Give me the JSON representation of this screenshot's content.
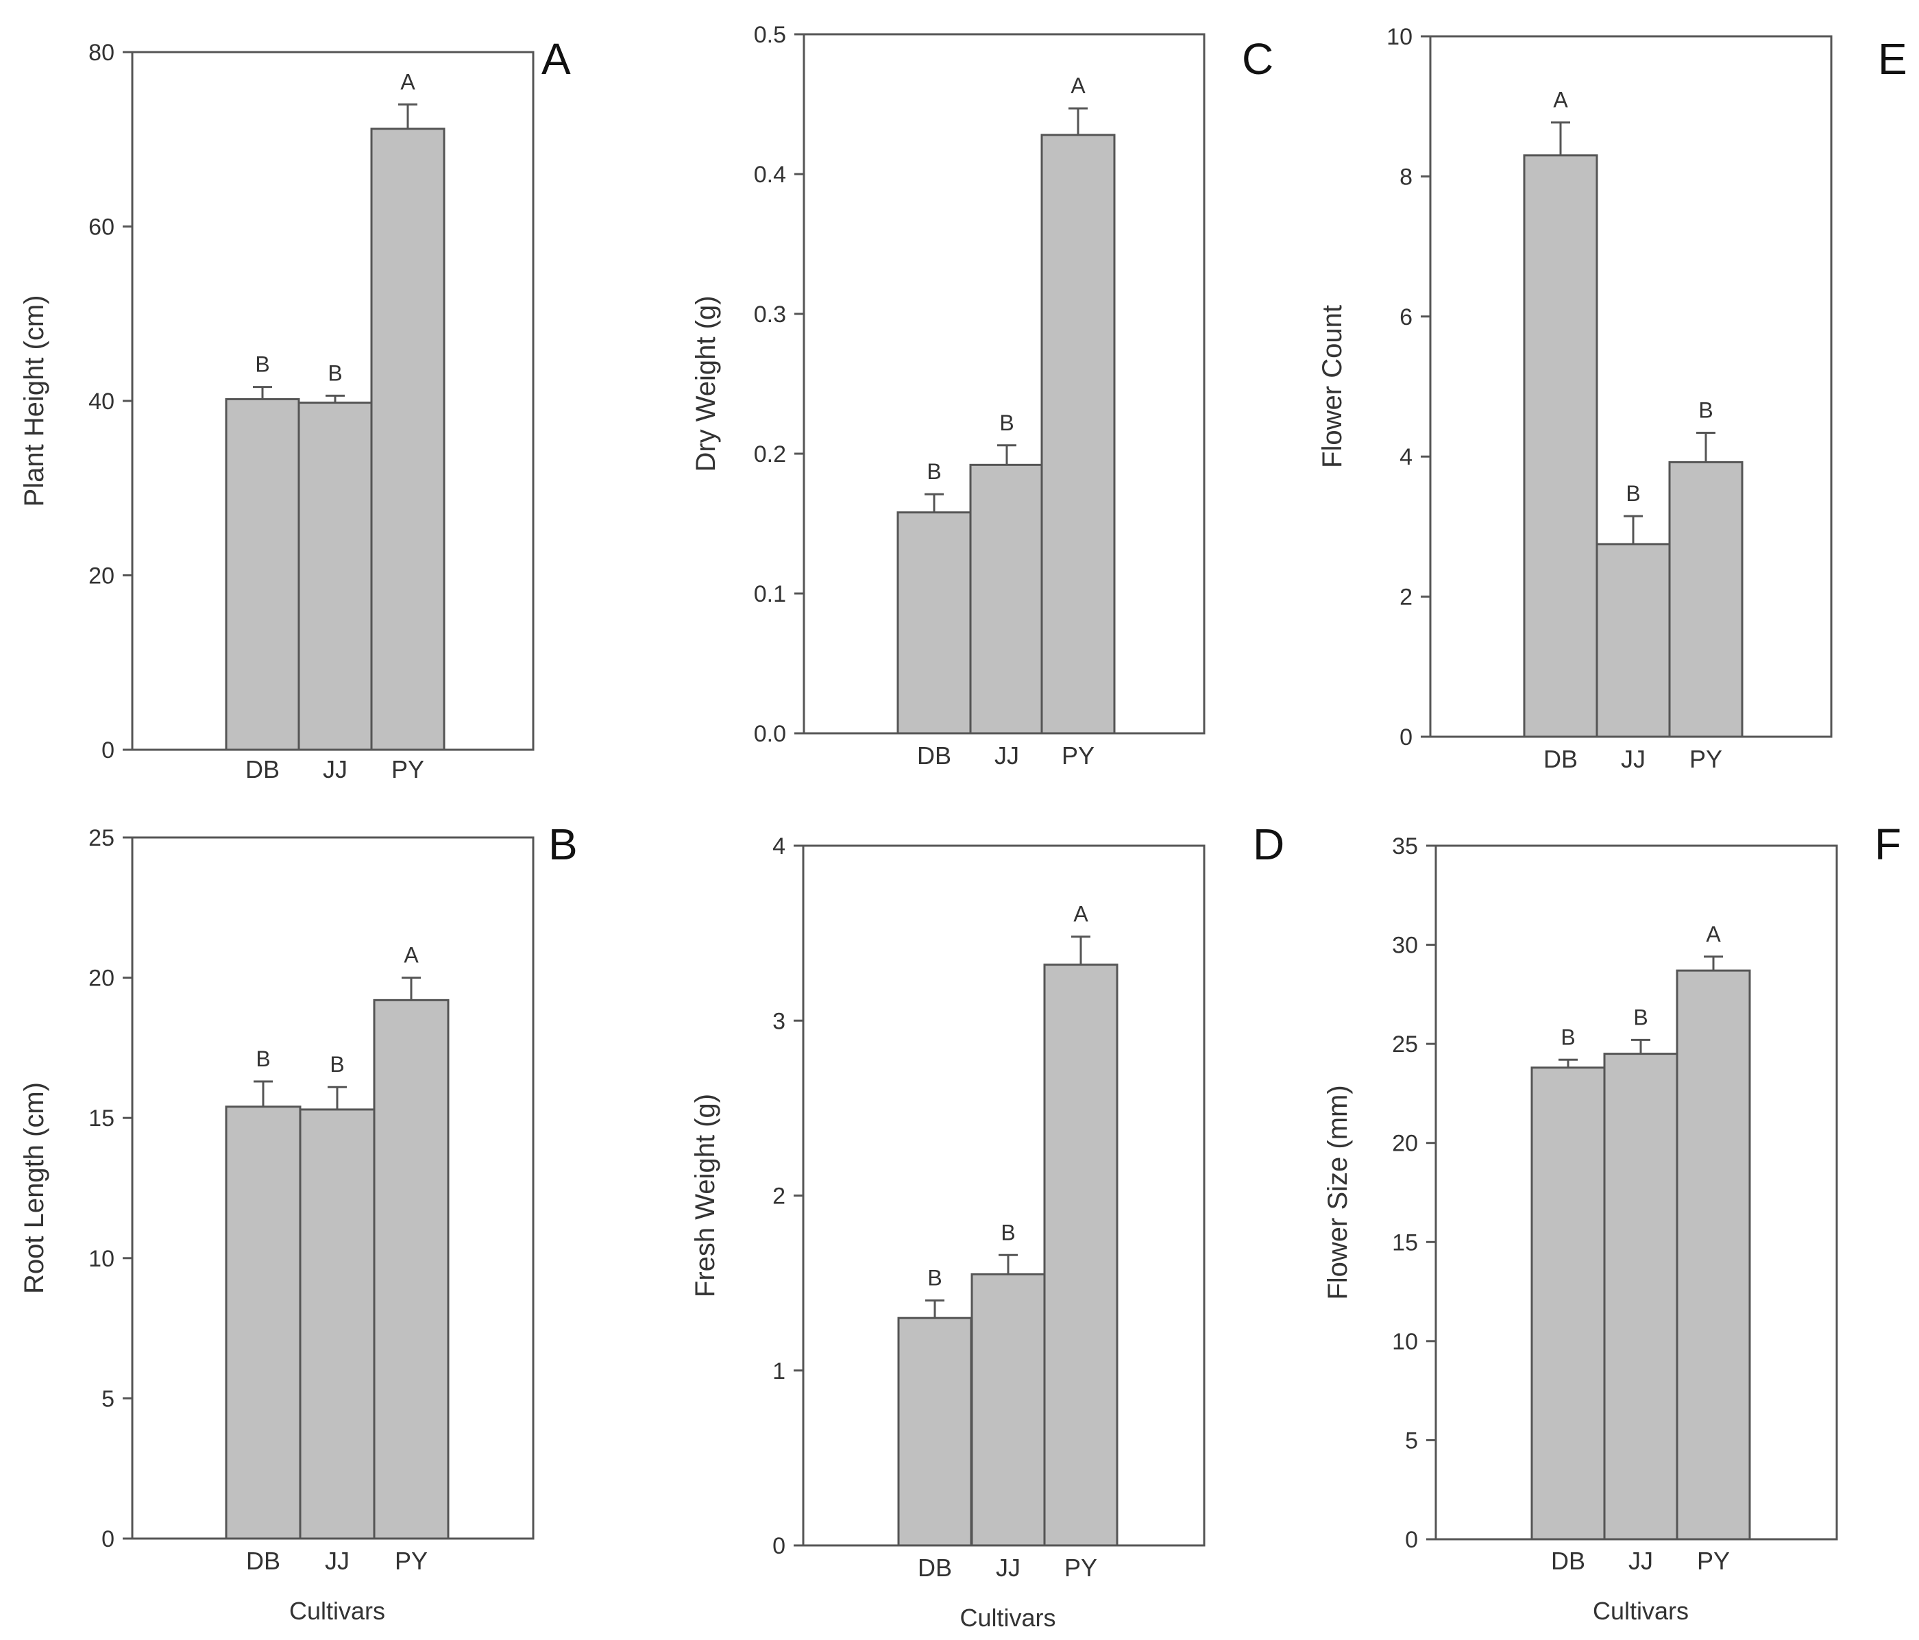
{
  "figure": {
    "bar_color": "#c0c0c0",
    "axis_color": "#555555",
    "text_color": "#333333"
  },
  "chart_data": [
    {
      "panel": "A",
      "type": "bar",
      "categories": [
        "DB",
        "JJ",
        "PY"
      ],
      "values": [
        40.2,
        39.8,
        71.2
      ],
      "errors": [
        1.4,
        0.8,
        2.8
      ],
      "significance": [
        "B",
        "B",
        "A"
      ],
      "ylabel": "Plant Height (cm)",
      "xlabel": "",
      "ylim": [
        0,
        80
      ],
      "yticks": [
        0,
        20,
        40,
        60,
        80
      ],
      "ytick_labels": [
        "0",
        "20",
        "40",
        "60",
        "80"
      ]
    },
    {
      "panel": "C",
      "type": "bar",
      "categories": [
        "DB",
        "JJ",
        "PY"
      ],
      "values": [
        0.158,
        0.192,
        0.428
      ],
      "errors": [
        0.013,
        0.014,
        0.019
      ],
      "significance": [
        "B",
        "B",
        "A"
      ],
      "ylabel": "Dry Weight (g)",
      "xlabel": "",
      "ylim": [
        0,
        0.5
      ],
      "yticks": [
        0,
        0.1,
        0.2,
        0.3,
        0.4,
        0.5
      ],
      "ytick_labels": [
        "0.0",
        "0.1",
        "0.2",
        "0.3",
        "0.4",
        "0.5"
      ]
    },
    {
      "panel": "E",
      "type": "bar",
      "categories": [
        "DB",
        "JJ",
        "PY"
      ],
      "values": [
        8.3,
        2.75,
        3.92
      ],
      "errors": [
        0.47,
        0.4,
        0.42
      ],
      "significance": [
        "A",
        "B",
        "B"
      ],
      "ylabel": "Flower Count",
      "xlabel": "",
      "ylim": [
        0,
        10
      ],
      "yticks": [
        0,
        2,
        4,
        6,
        8,
        10
      ],
      "ytick_labels": [
        "0",
        "2",
        "4",
        "6",
        "8",
        "10"
      ]
    },
    {
      "panel": "B",
      "type": "bar",
      "categories": [
        "DB",
        "JJ",
        "PY"
      ],
      "values": [
        15.4,
        15.3,
        19.2
      ],
      "errors": [
        0.9,
        0.8,
        0.8
      ],
      "significance": [
        "B",
        "B",
        "A"
      ],
      "ylabel": "Root Length (cm)",
      "xlabel": "Cultivars",
      "ylim": [
        0,
        25
      ],
      "yticks": [
        0,
        5,
        10,
        15,
        20,
        25
      ],
      "ytick_labels": [
        "0",
        "5",
        "10",
        "15",
        "20",
        "25"
      ]
    },
    {
      "panel": "D",
      "type": "bar",
      "categories": [
        "DB",
        "JJ",
        "PY"
      ],
      "values": [
        1.3,
        1.55,
        3.32
      ],
      "errors": [
        0.1,
        0.11,
        0.16
      ],
      "significance": [
        "B",
        "B",
        "A"
      ],
      "ylabel": "Fresh Weight (g)",
      "xlabel": "Cultivars",
      "ylim": [
        0,
        4
      ],
      "yticks": [
        0,
        1,
        2,
        3,
        4
      ],
      "ytick_labels": [
        "0",
        "1",
        "2",
        "3",
        "4"
      ]
    },
    {
      "panel": "F",
      "type": "bar",
      "categories": [
        "DB",
        "JJ",
        "PY"
      ],
      "values": [
        23.8,
        24.5,
        28.7
      ],
      "errors": [
        0.4,
        0.7,
        0.7
      ],
      "significance": [
        "B",
        "B",
        "A"
      ],
      "ylabel": "Flower Size (mm)",
      "xlabel": "Cultivars",
      "ylim": [
        0,
        35
      ],
      "yticks": [
        0,
        5,
        10,
        15,
        20,
        25,
        30,
        35
      ],
      "ytick_labels": [
        "0",
        "5",
        "10",
        "15",
        "20",
        "25",
        "30",
        "35"
      ]
    }
  ]
}
